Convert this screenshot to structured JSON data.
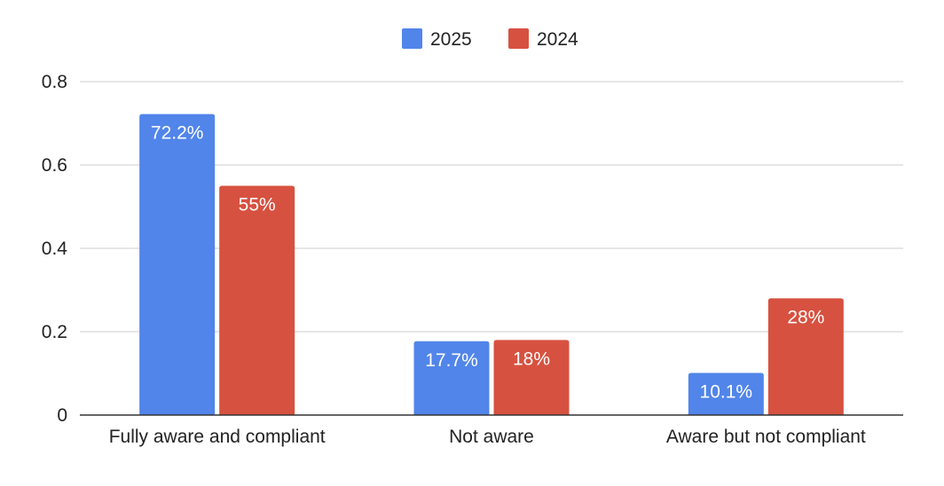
{
  "chart_data": {
    "type": "bar",
    "title": "",
    "xlabel": "",
    "ylabel": "",
    "categories": [
      "Fully aware and compliant",
      "Not aware",
      "Aware but not compliant"
    ],
    "series": [
      {
        "name": "2025",
        "values": [
          0.722,
          0.177,
          0.101
        ],
        "labels": [
          "72.2%",
          "17.7%",
          "10.1%"
        ],
        "color": "#5185ea"
      },
      {
        "name": "2024",
        "values": [
          0.55,
          0.18,
          0.28
        ],
        "labels": [
          "55%",
          "18%",
          "28%"
        ],
        "color": "#d75140"
      }
    ],
    "ylim": [
      0,
      0.8
    ],
    "yticks": [
      0,
      0.2,
      0.4,
      0.6,
      0.8
    ],
    "ytick_labels": [
      "0",
      "0.2",
      "0.4",
      "0.6",
      "0.8"
    ],
    "grid": true,
    "legend_position": "top-center"
  }
}
